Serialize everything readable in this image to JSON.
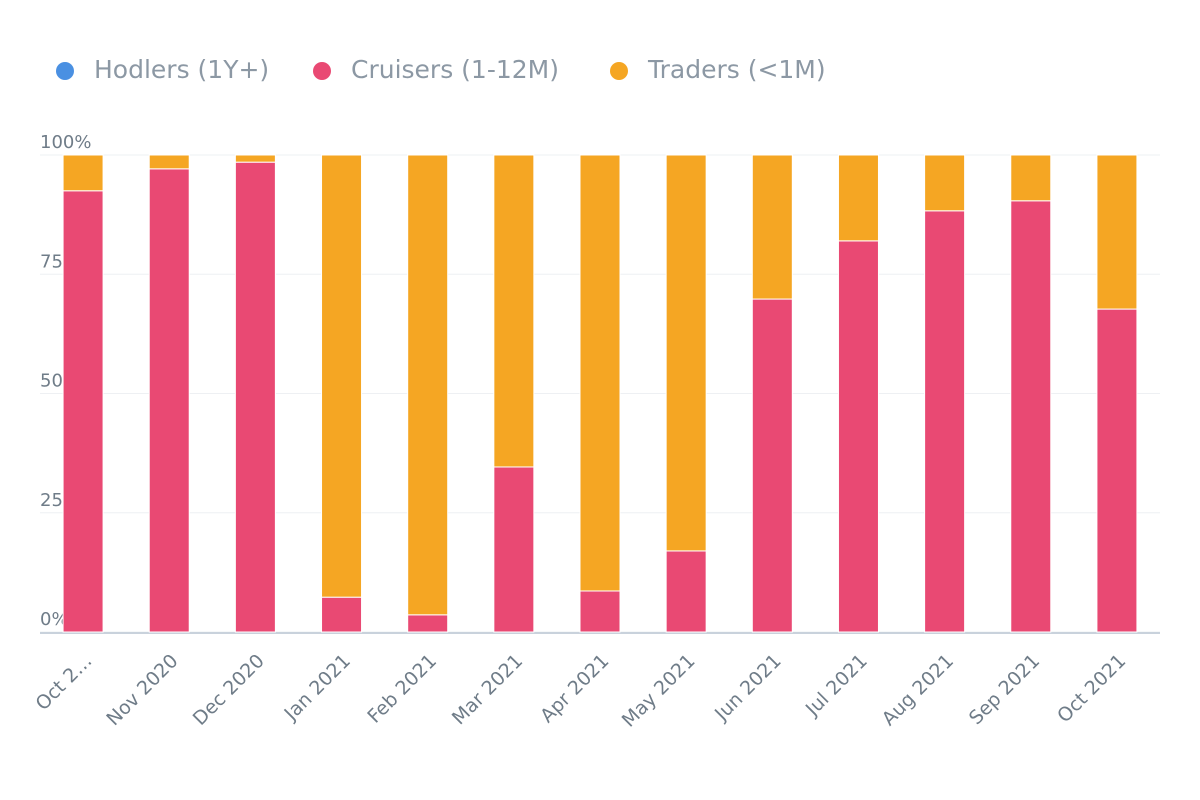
{
  "chart_data": {
    "type": "bar",
    "stacked": true,
    "categories": [
      "Oct 2…",
      "Nov 2020",
      "Dec 2020",
      "Jan 2021",
      "Feb 2021",
      "Mar 2021",
      "Apr 2021",
      "May 2021",
      "Jun 2021",
      "Jul 2021",
      "Aug 2021",
      "Sep 2021",
      "Oct 2021"
    ],
    "series": [
      {
        "name": "Hodlers (1Y+)",
        "color": "#4a90e2",
        "values": [
          0,
          0,
          0,
          0,
          0,
          0,
          0,
          0,
          0,
          0,
          0,
          0,
          0
        ]
      },
      {
        "name": "Cruisers (1-12M)",
        "color": "#e94973",
        "values": [
          92.5,
          97.1,
          98.5,
          7.3,
          3.6,
          34.6,
          8.6,
          17.0,
          69.8,
          82.0,
          88.3,
          90.4,
          67.7
        ]
      },
      {
        "name": "Traders (<1M)",
        "color": "#f5a623",
        "values": [
          7.5,
          2.9,
          1.5,
          92.7,
          96.4,
          65.4,
          91.4,
          83.0,
          30.2,
          18.0,
          11.7,
          9.6,
          32.3
        ]
      }
    ],
    "ylim": [
      0,
      100
    ],
    "yticks": [
      {
        "value": 0,
        "label": "0%"
      },
      {
        "value": 25,
        "label": "25%"
      },
      {
        "value": 50,
        "label": "50%"
      },
      {
        "value": 75,
        "label": "75%"
      },
      {
        "value": 100,
        "label": "100%"
      }
    ],
    "grid": true
  }
}
